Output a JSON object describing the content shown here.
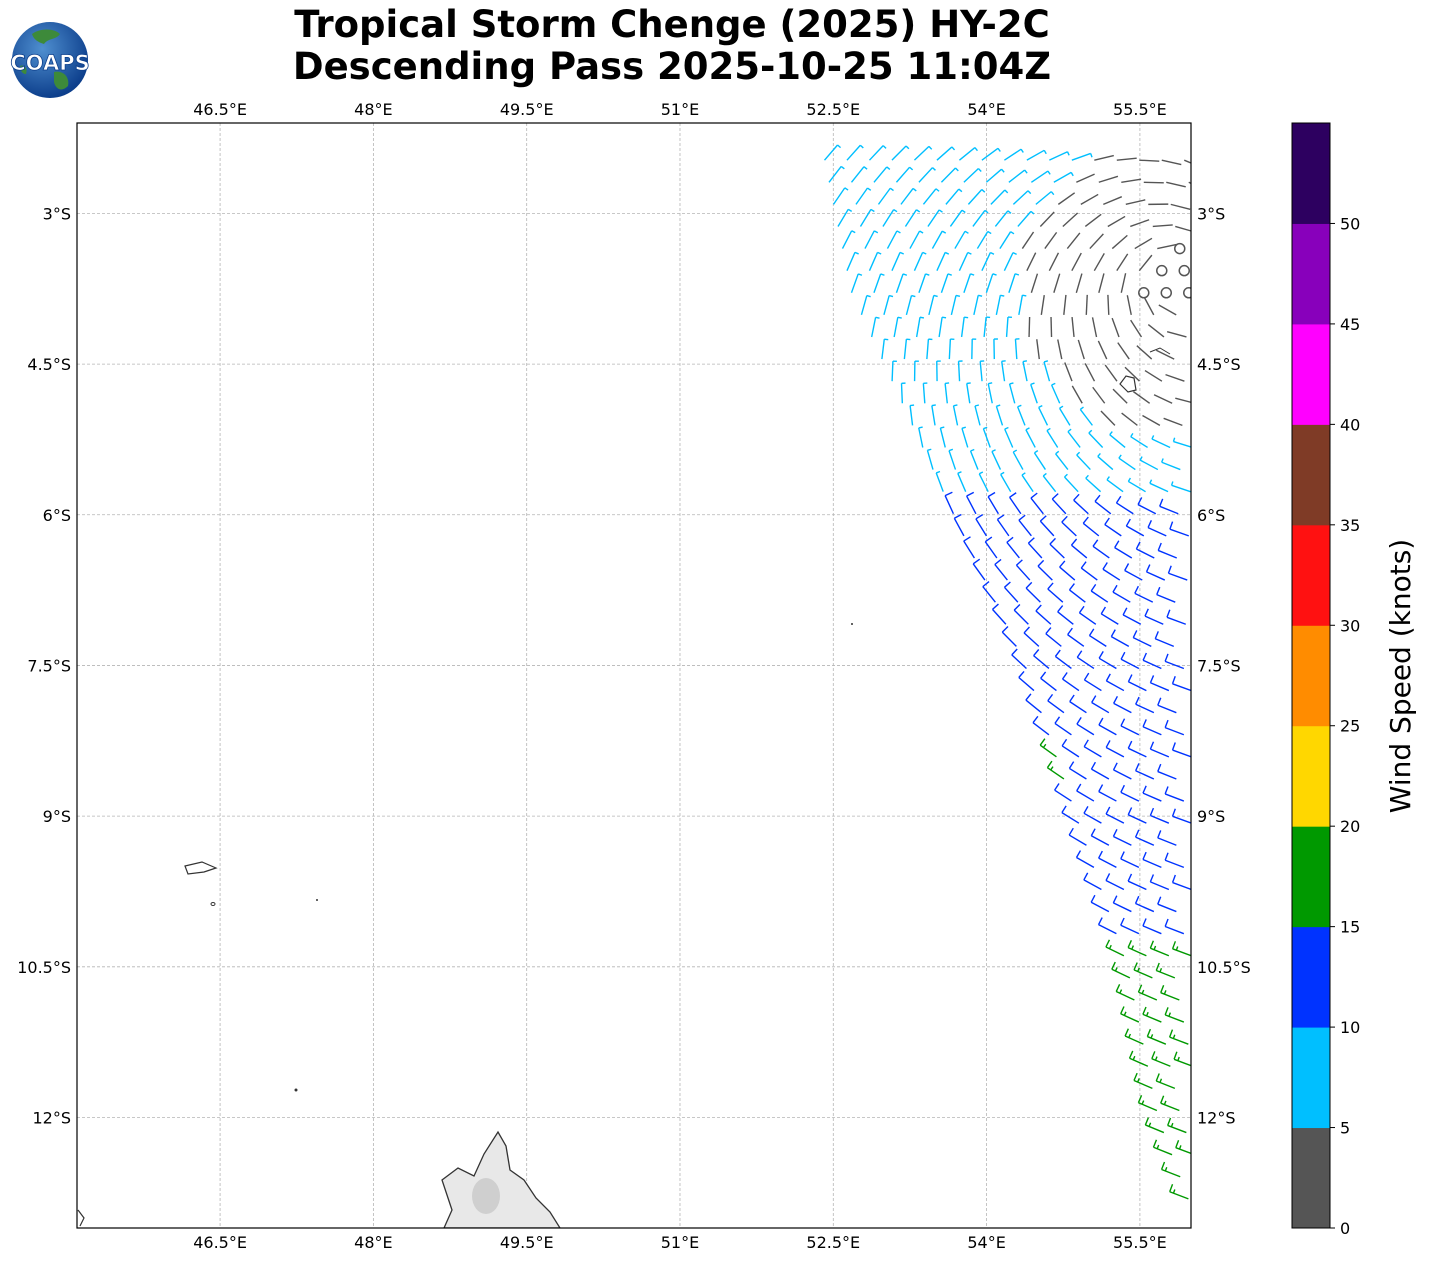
{
  "title": {
    "line1": "Tropical Storm Chenge (2025) HY-2C",
    "line2": "Descending Pass 2025-10-25 11:04Z"
  },
  "logo": {
    "text": "COAPS"
  },
  "map": {
    "lon_range": [
      45.1,
      56.0
    ],
    "lat_range": [
      -13.1,
      -2.1
    ],
    "lon_ticks": [
      {
        "value": 46.5,
        "label": "46.5°E"
      },
      {
        "value": 48.0,
        "label": "48°E"
      },
      {
        "value": 49.5,
        "label": "49.5°E"
      },
      {
        "value": 51.0,
        "label": "51°E"
      },
      {
        "value": 52.5,
        "label": "52.5°E"
      },
      {
        "value": 54.0,
        "label": "54°E"
      },
      {
        "value": 55.5,
        "label": "55.5°E"
      }
    ],
    "lat_ticks": [
      {
        "value": -3.0,
        "label": "3°S"
      },
      {
        "value": -4.5,
        "label": "4.5°S"
      },
      {
        "value": -6.0,
        "label": "6°S"
      },
      {
        "value": -7.5,
        "label": "7.5°S"
      },
      {
        "value": -9.0,
        "label": "9°S"
      },
      {
        "value": -10.5,
        "label": "10.5°S"
      },
      {
        "value": -12.0,
        "label": "12°S"
      }
    ],
    "grid": true,
    "coastline_color": "#333333",
    "swath_edge": [
      [
        52.3,
        -2.3
      ],
      [
        52.6,
        -3.8
      ],
      [
        53.6,
        -6.0
      ],
      [
        54.3,
        -7.5
      ],
      [
        54.8,
        -9.0
      ],
      [
        55.3,
        -10.5
      ],
      [
        55.6,
        -12.0
      ],
      [
        56.0,
        -13.1
      ]
    ]
  },
  "wind_colors": [
    "#555555",
    "#00bfff",
    "#0033ff",
    "#009900",
    "#ffd700",
    "#ff8c00",
    "#ff1111",
    "#7f3b26",
    "#ff00ff",
    "#8800bb",
    "#2d0060"
  ],
  "colorbar": {
    "label": "Wind Speed (knots)",
    "min": 0,
    "max": 55,
    "step": 5,
    "tick_labels": [
      "0",
      "5",
      "10",
      "15",
      "20",
      "25",
      "30",
      "35",
      "40",
      "45",
      "50"
    ]
  }
}
